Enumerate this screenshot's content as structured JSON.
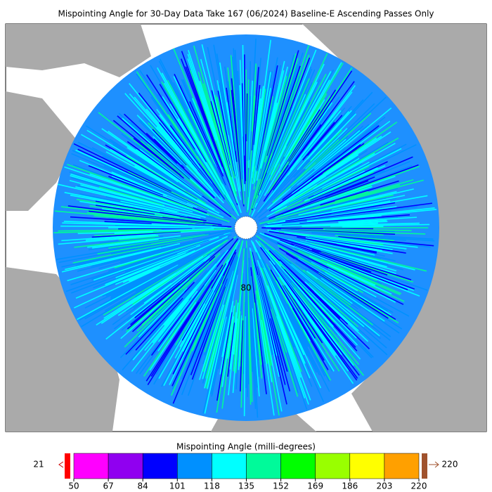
{
  "title": "Mispointing Angle for 30-Day Data Take 167 (06/2024) Baseline-E Ascending Passes Only",
  "map": {
    "latitude_label": "80"
  },
  "colorbar": {
    "label": "Mispointing Angle (milli-degrees)",
    "ticks": [
      50,
      67,
      84,
      101,
      118,
      135,
      152,
      169,
      186,
      203,
      220
    ],
    "colors": [
      "#ff00ff",
      "#9000f0",
      "#0000ff",
      "#0090ff",
      "#00ffff",
      "#00fa9a",
      "#00ff00",
      "#99ff00",
      "#ffff00",
      "#ffa000"
    ],
    "under": {
      "value": 21,
      "color": "#ff0000"
    },
    "over": {
      "value": 220,
      "color": "#a0522d"
    }
  }
}
